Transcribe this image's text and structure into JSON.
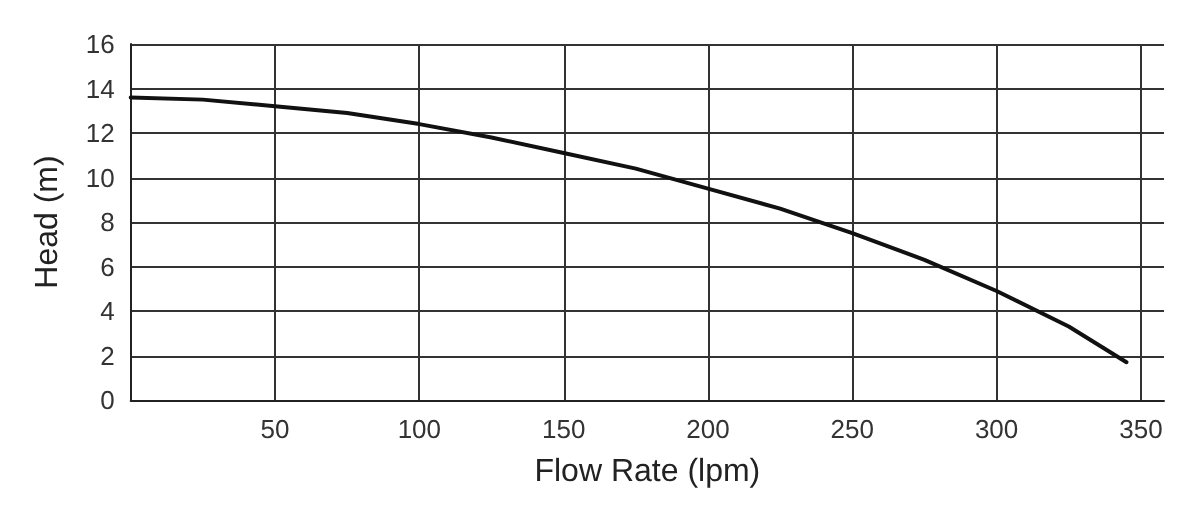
{
  "chart_data": {
    "type": "line",
    "xlabel": "Flow Rate (lpm)",
    "ylabel": "Head (m)",
    "x": [
      0,
      25,
      50,
      75,
      100,
      125,
      150,
      175,
      200,
      225,
      250,
      275,
      300,
      325,
      345
    ],
    "series": [
      {
        "color": "#111111",
        "values": [
          13.6,
          13.5,
          13.2,
          12.9,
          12.4,
          11.8,
          11.1,
          10.4,
          9.5,
          8.6,
          7.5,
          6.3,
          4.9,
          3.3,
          1.7
        ]
      }
    ],
    "xlim": [
      0,
      358
    ],
    "xticks": [
      50,
      100,
      150,
      200,
      250,
      300,
      350
    ],
    "ylim": [
      0,
      16
    ],
    "yticks": [
      0,
      2,
      4,
      6,
      8,
      10,
      12,
      14,
      16
    ],
    "grid": true,
    "marker": "none",
    "line_style": "solid"
  }
}
